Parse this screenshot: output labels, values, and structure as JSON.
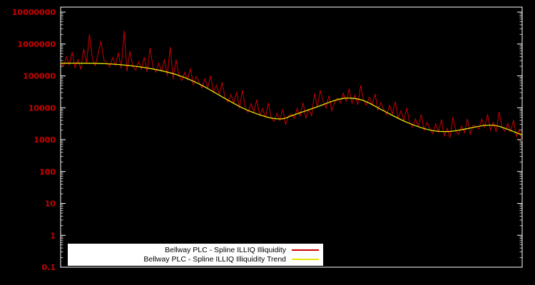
{
  "chart_data": {
    "type": "line",
    "title": "",
    "background": "#000000",
    "axis_color": "#ffffff",
    "x_axis": {
      "label": "",
      "tick_labels_visible": false
    },
    "y_axis": {
      "label": "",
      "scale": "log",
      "range": [
        0.1,
        10000000
      ],
      "label_color": "#cc0000",
      "ticks": [
        {
          "label": "0.1",
          "value": 0.1
        },
        {
          "label": "1",
          "value": 1
        },
        {
          "label": "10",
          "value": 10
        },
        {
          "label": "100",
          "value": 100
        },
        {
          "label": "1000",
          "value": 1000
        },
        {
          "label": "10000",
          "value": 10000
        },
        {
          "label": "100000",
          "value": 100000
        },
        {
          "label": "1000000",
          "value": 1000000
        },
        {
          "label": "10000000",
          "value": 10000000
        }
      ]
    },
    "legend": {
      "position": "bottom-center",
      "background": "#ffffff",
      "entries": [
        {
          "label": "Bellway PLC - Spline ILLIQ Illiquidity",
          "color": "#cc0000"
        },
        {
          "label": "Bellway PLC - Spline ILLIQ Illiquidity Trend",
          "color": "#e6e600"
        }
      ]
    },
    "series": [
      {
        "name": "Bellway PLC - Spline ILLIQ Illiquidity",
        "color": "#cc0000",
        "style": "noisy-line",
        "values": [
          280000,
          200000,
          400000,
          220000,
          560000,
          180000,
          320000,
          160000,
          700000,
          250000,
          2000000,
          350000,
          210000,
          500000,
          1250000,
          300000,
          270000,
          190000,
          380000,
          210000,
          530000,
          170000,
          2600000,
          140000,
          590000,
          200000,
          150000,
          280000,
          160000,
          390000,
          130000,
          760000,
          190000,
          130000,
          250000,
          140000,
          330000,
          100000,
          800000,
          80000,
          320000,
          105000,
          72000,
          130000,
          75000,
          170000,
          53000,
          95000,
          63000,
          42000,
          82000,
          42000,
          100000,
          30000,
          51000,
          26000,
          63000,
          21000,
          15000,
          26000,
          14000,
          31000,
          9500,
          36000,
          10000,
          7000,
          13500,
          7500,
          18000,
          5600,
          9500,
          4700,
          14000,
          4900,
          3700,
          6800,
          3900,
          8900,
          3000,
          5600,
          6300,
          4600,
          9500,
          5500,
          14500,
          4800,
          8800,
          5600,
          28000,
          10500,
          35000,
          16000,
          9800,
          24000,
          8200,
          15000,
          20000,
          14200,
          28500,
          16000,
          40000,
          14000,
          25000,
          12500,
          50000,
          17500,
          12000,
          21500,
          12200,
          27000,
          8500,
          14500,
          8900,
          6100,
          11800,
          6400,
          15500,
          4700,
          8100,
          3900,
          10000,
          3400,
          2500,
          4500,
          2600,
          6100,
          1950,
          3500,
          2200,
          1550,
          3100,
          1700,
          4300,
          1300,
          2250,
          1150,
          5200,
          1850,
          1450,
          2700,
          1650,
          4500,
          1500,
          2800,
          2650,
          2150,
          4400,
          2500,
          6200,
          1950,
          3500,
          1750,
          7400,
          2500,
          1800,
          3200,
          1800,
          4100,
          1250,
          2100,
          900
        ]
      },
      {
        "name": "Bellway PLC - Spline ILLIQ Illiquidity Trend",
        "color": "#e6e600",
        "style": "smooth-line",
        "points": [
          [
            0.0,
            250000
          ],
          [
            0.05,
            250000
          ],
          [
            0.1,
            240000
          ],
          [
            0.15,
            210000
          ],
          [
            0.2,
            165000
          ],
          [
            0.25,
            110000
          ],
          [
            0.3,
            56000
          ],
          [
            0.35,
            22000
          ],
          [
            0.4,
            9000
          ],
          [
            0.45,
            5000
          ],
          [
            0.48,
            4500
          ],
          [
            0.5,
            5600
          ],
          [
            0.55,
            10000
          ],
          [
            0.6,
            18000
          ],
          [
            0.63,
            20000
          ],
          [
            0.66,
            16000
          ],
          [
            0.7,
            8000
          ],
          [
            0.75,
            3500
          ],
          [
            0.8,
            2000
          ],
          [
            0.84,
            1800
          ],
          [
            0.88,
            2200
          ],
          [
            0.92,
            2800
          ],
          [
            0.95,
            2600
          ],
          [
            1.0,
            1400
          ]
        ]
      }
    ]
  }
}
